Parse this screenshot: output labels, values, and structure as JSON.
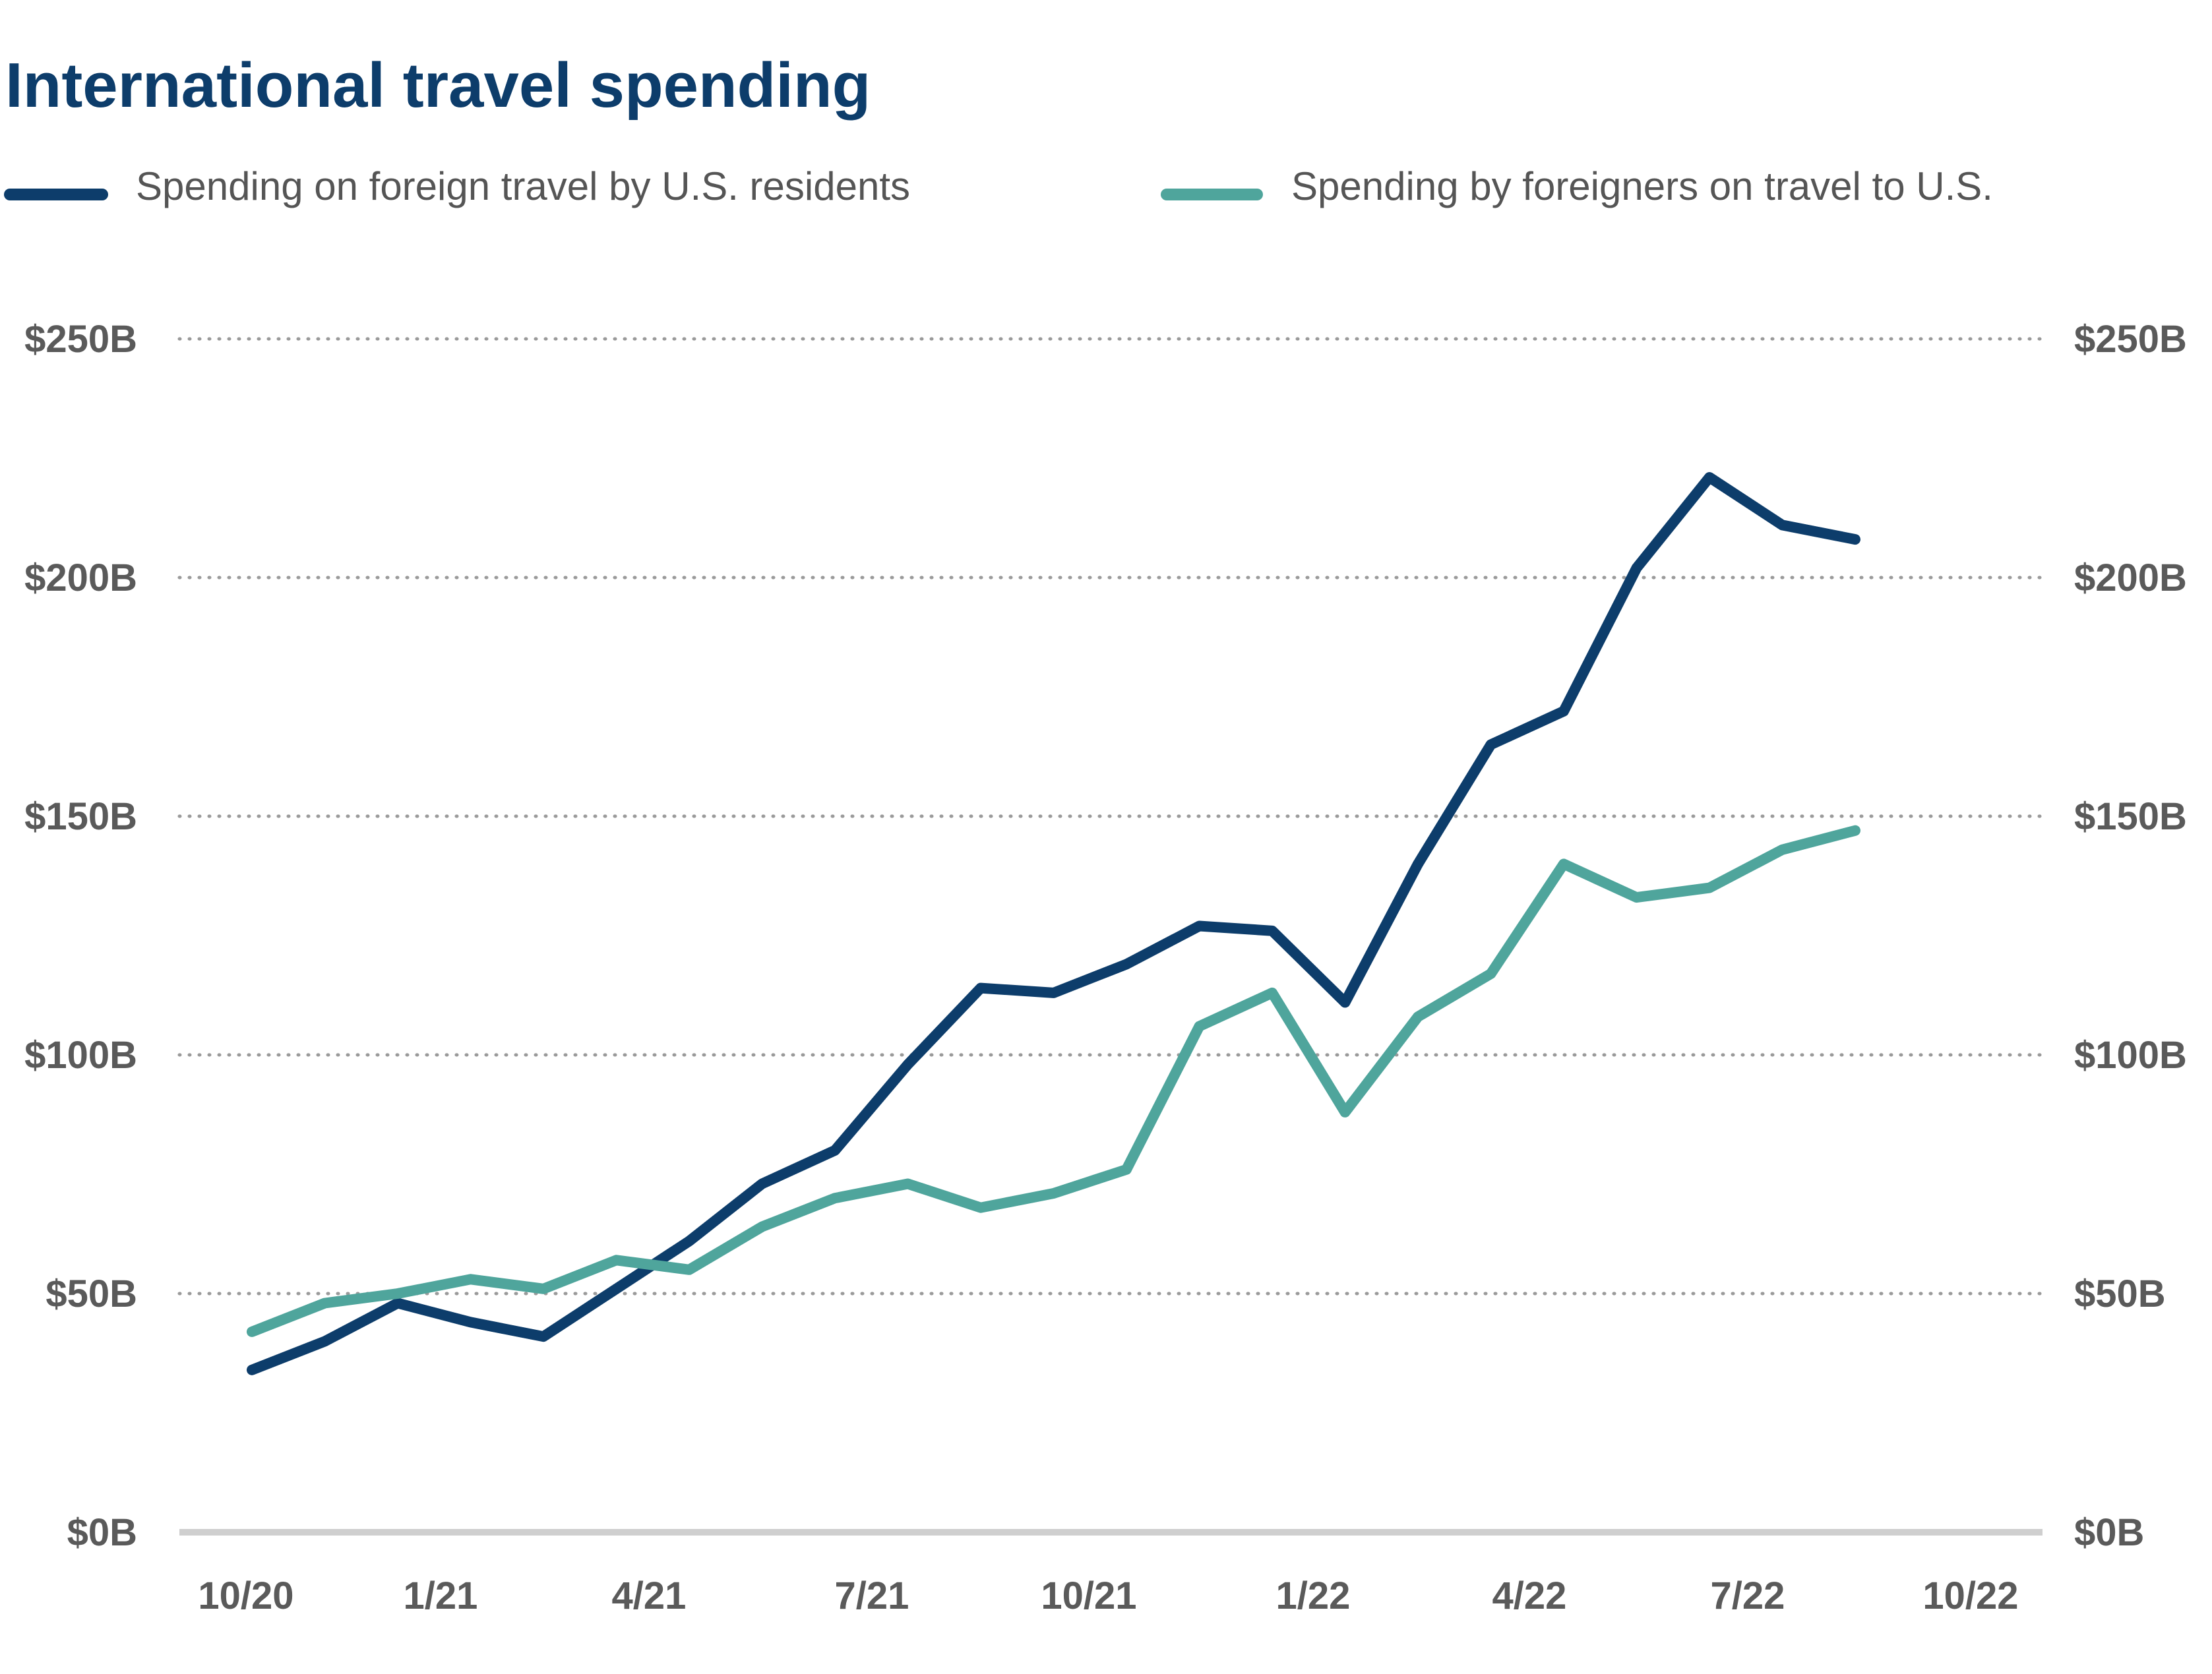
{
  "chart_data": {
    "type": "line",
    "title": "International travel spending",
    "xlabel": "",
    "ylabel": "",
    "x_ticks": [
      "10/20",
      "1/21",
      "4/21",
      "7/21",
      "10/21",
      "1/22",
      "4/22",
      "7/22",
      "10/22"
    ],
    "y_ticks": [
      "$0B",
      "$50B",
      "$100B",
      "$150B",
      "$200B",
      "$250B"
    ],
    "ylim": [
      0,
      250
    ],
    "grid": "horizontal-dotted",
    "legend_position": "top",
    "x_months": [
      "2020-10",
      "2020-11",
      "2020-12",
      "2021-01",
      "2021-02",
      "2021-03",
      "2021-04",
      "2021-05",
      "2021-06",
      "2021-07",
      "2021-08",
      "2021-09",
      "2021-10",
      "2021-11",
      "2021-12",
      "2022-01",
      "2022-02",
      "2022-03",
      "2022-04",
      "2022-05",
      "2022-06",
      "2022-07",
      "2022-08"
    ],
    "series": [
      {
        "name": "Spending on foreign travel by U.S. residents",
        "color": "#0d3d6b",
        "values": [
          34,
          40,
          48,
          44,
          41,
          51,
          61,
          73,
          80,
          98,
          114,
          113,
          119,
          127,
          126,
          111,
          140,
          165,
          172,
          202,
          221,
          211,
          208
        ]
      },
      {
        "name": "Spending by foreigners on travel to U.S.",
        "color": "#4fa59c",
        "values": [
          42,
          48,
          50,
          53,
          51,
          57,
          55,
          64,
          70,
          73,
          68,
          71,
          76,
          106,
          113,
          88,
          108,
          117,
          140,
          133,
          135,
          143,
          147
        ]
      }
    ]
  }
}
